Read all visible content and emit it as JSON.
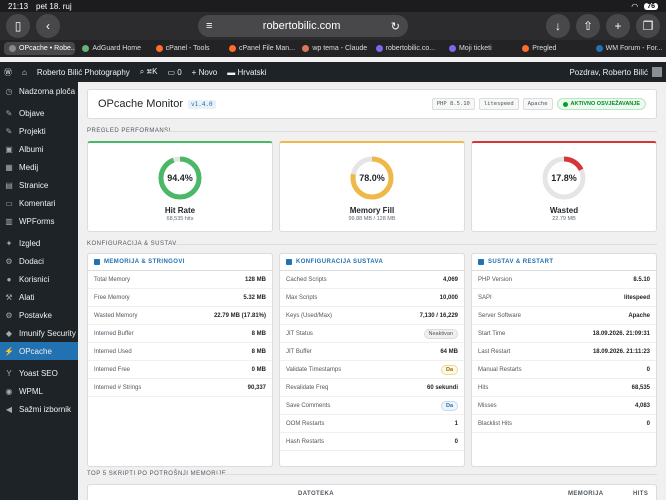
{
  "status_bar": {
    "time": "21:13",
    "date": "pet 18. ruj",
    "battery": "76"
  },
  "browser": {
    "url": "robertobilic.com",
    "reader_icon": "reader-icon"
  },
  "tabs": [
    {
      "label": "OPcache • Robe...",
      "color": "#888"
    },
    {
      "label": "AdGuard Home",
      "color": "#67b279"
    },
    {
      "label": "cPanel - Tools",
      "color": "#ff6c2c"
    },
    {
      "label": "cPanel File Man...",
      "color": "#ff6c2c"
    },
    {
      "label": "wp tema - Claude",
      "color": "#d97757"
    },
    {
      "label": "robertobilic.co...",
      "color": "#7b68ee"
    },
    {
      "label": "Moji ticketi",
      "color": "#7b68ee"
    },
    {
      "label": "Pregled",
      "color": "#ff6c2c"
    },
    {
      "label": "WM Forum - For...",
      "color": "#2271b1"
    }
  ],
  "wpbar": {
    "site": "Roberto Bilić Photography",
    "shortcut": "⌘K",
    "comments": "0",
    "new": "Novo",
    "lang": "Hrvatski",
    "greeting": "Pozdrav, Roberto Bilić"
  },
  "sidebar": [
    {
      "label": "Nadzorna ploča",
      "icon": "◷",
      "name": "dashboard"
    },
    {
      "gap": true
    },
    {
      "label": "Objave",
      "icon": "✎",
      "name": "posts"
    },
    {
      "label": "Projekti",
      "icon": "✎",
      "name": "projects"
    },
    {
      "label": "Albumi",
      "icon": "▣",
      "name": "albums"
    },
    {
      "label": "Medij",
      "icon": "▦",
      "name": "media"
    },
    {
      "label": "Stranice",
      "icon": "▤",
      "name": "pages"
    },
    {
      "label": "Komentari",
      "icon": "▭",
      "name": "comments"
    },
    {
      "label": "WPForms",
      "icon": "▥",
      "name": "wpforms"
    },
    {
      "gap": true
    },
    {
      "label": "Izgled",
      "icon": "✦",
      "name": "appearance"
    },
    {
      "label": "Dodaci",
      "icon": "⚙",
      "name": "plugins"
    },
    {
      "label": "Korisnici",
      "icon": "●",
      "name": "users"
    },
    {
      "label": "Alati",
      "icon": "⚒",
      "name": "tools"
    },
    {
      "label": "Postavke",
      "icon": "⚙",
      "name": "settings"
    },
    {
      "label": "Imunify Security",
      "icon": "◆",
      "name": "imunify"
    },
    {
      "label": "OPcache",
      "icon": "⚡",
      "name": "opcache",
      "current": true
    },
    {
      "gap": true
    },
    {
      "label": "Yoast SEO",
      "icon": "Y",
      "name": "yoast"
    },
    {
      "label": "WPML",
      "icon": "◉",
      "name": "wpml"
    },
    {
      "label": "Sažmi izbornik",
      "icon": "◀",
      "name": "collapse"
    }
  ],
  "header": {
    "title": "OPcache Monitor",
    "version": "v1.4.0",
    "php": "PHP 8.5.10",
    "server": "litespeed",
    "software": "Apache",
    "status": "AKTIVNO OSVJEŽAVANJE"
  },
  "sections": {
    "performance": "PREGLED PERFORMANSI",
    "config": "KONFIGURACIJA & SUSTAV",
    "top": "TOP 5 SKRIPTI PO POTROŠNJI MEMORIJE"
  },
  "gauges": [
    {
      "name": "hit-rate",
      "value": "94.4%",
      "fraction": 0.944,
      "label": "Hit Rate",
      "sub": "68,535 hits",
      "color": "#4ab866"
    },
    {
      "name": "memory-fill",
      "value": "78.0%",
      "fraction": 0.78,
      "label": "Memory Fill",
      "sub": "99.88 MB / 128 MB",
      "color": "#f0b849"
    },
    {
      "name": "wasted",
      "value": "17.8%",
      "fraction": 0.178,
      "label": "Wasted",
      "sub": "22.79 MB",
      "color": "#d63638"
    }
  ],
  "panels": [
    {
      "title": "MEMORIJA & STRINGOVI",
      "rows": [
        {
          "k": "Total Memory",
          "v": "128 MB"
        },
        {
          "k": "Free Memory",
          "v": "5.32 MB"
        },
        {
          "k": "Wasted Memory",
          "v": "22.79 MB (17.81%)"
        },
        {
          "k": "Interned Buffer",
          "v": "8 MB"
        },
        {
          "k": "Interned Used",
          "v": "8 MB"
        },
        {
          "k": "Interned Free",
          "v": "0 MB"
        },
        {
          "k": "Interned # Strings",
          "v": "90,337"
        }
      ]
    },
    {
      "title": "KONFIGURACIJA SUSTAVA",
      "rows": [
        {
          "k": "Cached Scripts",
          "v": "4,069"
        },
        {
          "k": "Max Scripts",
          "v": "10,000"
        },
        {
          "k": "Keys (Used/Max)",
          "v": "7,130 / 16,229"
        },
        {
          "k": "JIT Status",
          "v": "Neaktivan",
          "badge": "gray"
        },
        {
          "k": "JIT Buffer",
          "v": "64 MB"
        },
        {
          "k": "Validate Timestamps",
          "v": "Da",
          "badge": "yel"
        },
        {
          "k": "Revalidate Freq",
          "v": "60 sekundi"
        },
        {
          "k": "Save Comments",
          "v": "Da",
          "badge": "blu"
        },
        {
          "k": "OOM Restarts",
          "v": "1"
        },
        {
          "k": "Hash Restarts",
          "v": "0"
        }
      ]
    },
    {
      "title": "SUSTAV & RESTART",
      "rows": [
        {
          "k": "PHP Version",
          "v": "8.5.10"
        },
        {
          "k": "SAPI",
          "v": "litespeed"
        },
        {
          "k": "Server Software",
          "v": "Apache"
        },
        {
          "k": "Start Time",
          "v": "18.09.2026. 21:09:31"
        },
        {
          "k": "Last Restart",
          "v": "18.09.2026. 21:11:23"
        },
        {
          "k": "Manual Restarts",
          "v": "0"
        },
        {
          "k": "Hits",
          "v": "68,535"
        },
        {
          "k": "Misses",
          "v": "4,083"
        },
        {
          "k": "Blacklist Hits",
          "v": "0"
        }
      ]
    }
  ],
  "table": {
    "col1": "DATOTEKA",
    "col2": "MEMORIJA",
    "col3": "HITS"
  }
}
